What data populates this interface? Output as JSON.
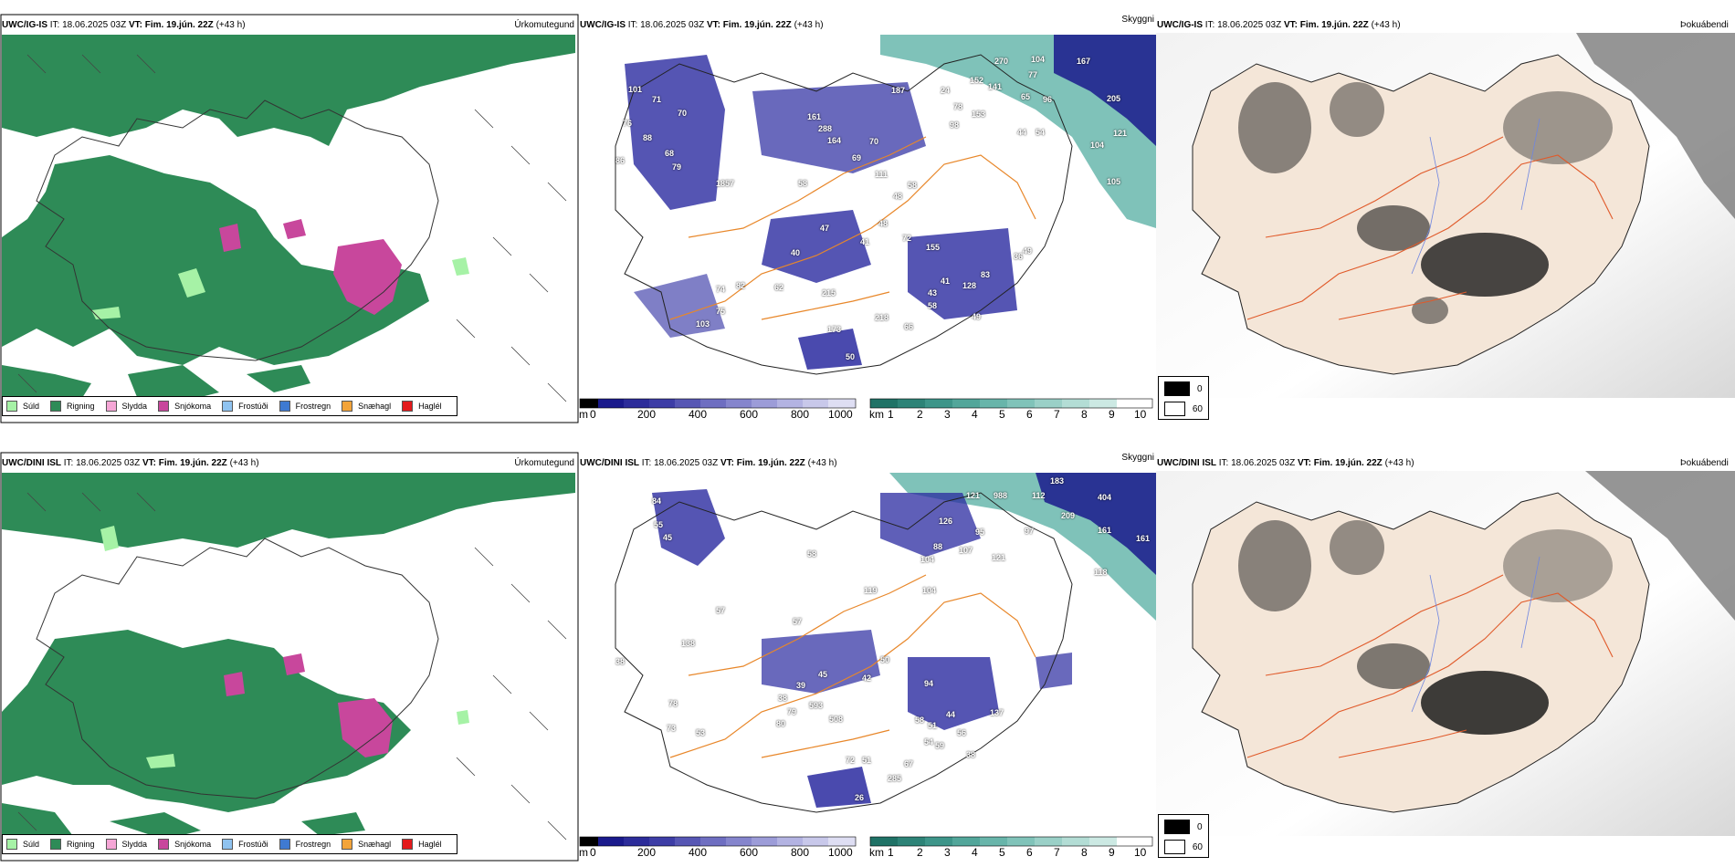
{
  "rows": [
    {
      "model": "UWC/IG-IS",
      "it": "IT: 18.06.2025 03Z",
      "vt_label": "VT:",
      "vt_value": "Fim. 19.jún. 22Z",
      "lead": "(+43 h)",
      "precip_title": "Úrkomutegund",
      "cloud_title": "Skyggni",
      "fog_title": "Þokuábendi",
      "cloud_labels": [
        "167",
        "270",
        "104",
        "77",
        "152",
        "141",
        "65",
        "96",
        "205",
        "121",
        "104",
        "105",
        "187",
        "24",
        "78",
        "161",
        "288",
        "164",
        "70",
        "69",
        "111",
        "153",
        "98",
        "44",
        "54",
        "47",
        "48",
        "41",
        "40",
        "72",
        "155",
        "49",
        "41",
        "83",
        "43",
        "58",
        "128",
        "36",
        "215",
        "218",
        "66",
        "173",
        "50",
        "49",
        "103",
        "75",
        "62",
        "82",
        "74",
        "57",
        "86",
        "79",
        "71",
        "70",
        "88",
        "76",
        "68",
        "101",
        "48",
        "58",
        "18",
        "58"
      ]
    },
    {
      "model": "UWC/DINI ISL",
      "it": "IT: 18.06.2025 03Z",
      "vt_label": "VT:",
      "vt_value": "Fim. 19.jún. 22Z",
      "lead": "(+43 h)",
      "precip_title": "Úrkomutegund",
      "cloud_title": "Skyggni",
      "fog_title": "Þokuábendi",
      "cloud_labels": [
        "183",
        "988",
        "112",
        "404",
        "209",
        "161",
        "161",
        "121",
        "126",
        "95",
        "97",
        "107",
        "121",
        "118",
        "84",
        "55",
        "45",
        "58",
        "104",
        "88",
        "119",
        "104",
        "42",
        "50",
        "45",
        "39",
        "38",
        "80",
        "79",
        "593",
        "508",
        "94",
        "58",
        "51",
        "44",
        "56",
        "54",
        "59",
        "67",
        "38",
        "137",
        "72",
        "51",
        "26",
        "285",
        "78",
        "73",
        "53",
        "38",
        "138",
        "57",
        "57"
      ]
    }
  ],
  "precip_legend": [
    {
      "label": "Súld",
      "color": "#a6f2a6"
    },
    {
      "label": "Rigning",
      "color": "#2e8b57"
    },
    {
      "label": "Slydda",
      "color": "#f5a6d6"
    },
    {
      "label": "Snjókoma",
      "color": "#c8479c"
    },
    {
      "label": "Frostúði",
      "color": "#8fc3f0"
    },
    {
      "label": "Frostregn",
      "color": "#3f7ad1"
    },
    {
      "label": "Snæhagl",
      "color": "#f3a43a"
    },
    {
      "label": "Haglél",
      "color": "#e31a1c"
    }
  ],
  "ceiling_bar": {
    "unit": "m",
    "ticks": [
      "0",
      "200",
      "400",
      "600",
      "800",
      "1000"
    ]
  },
  "vis_bar": {
    "unit": "km",
    "ticks": [
      "1",
      "2",
      "3",
      "4",
      "5",
      "6",
      "7",
      "8",
      "9",
      "10"
    ]
  },
  "fog_legend": [
    "0",
    "60"
  ],
  "colors": {
    "rain": "#2e8b57",
    "snow": "#c8479c",
    "drizzle": "#a6f2a6",
    "cloud_dark": "#1a1a8c",
    "fog_sea": "#5fb3a8",
    "roads": "#e8872a",
    "fog_land": "#f4e6d8"
  }
}
